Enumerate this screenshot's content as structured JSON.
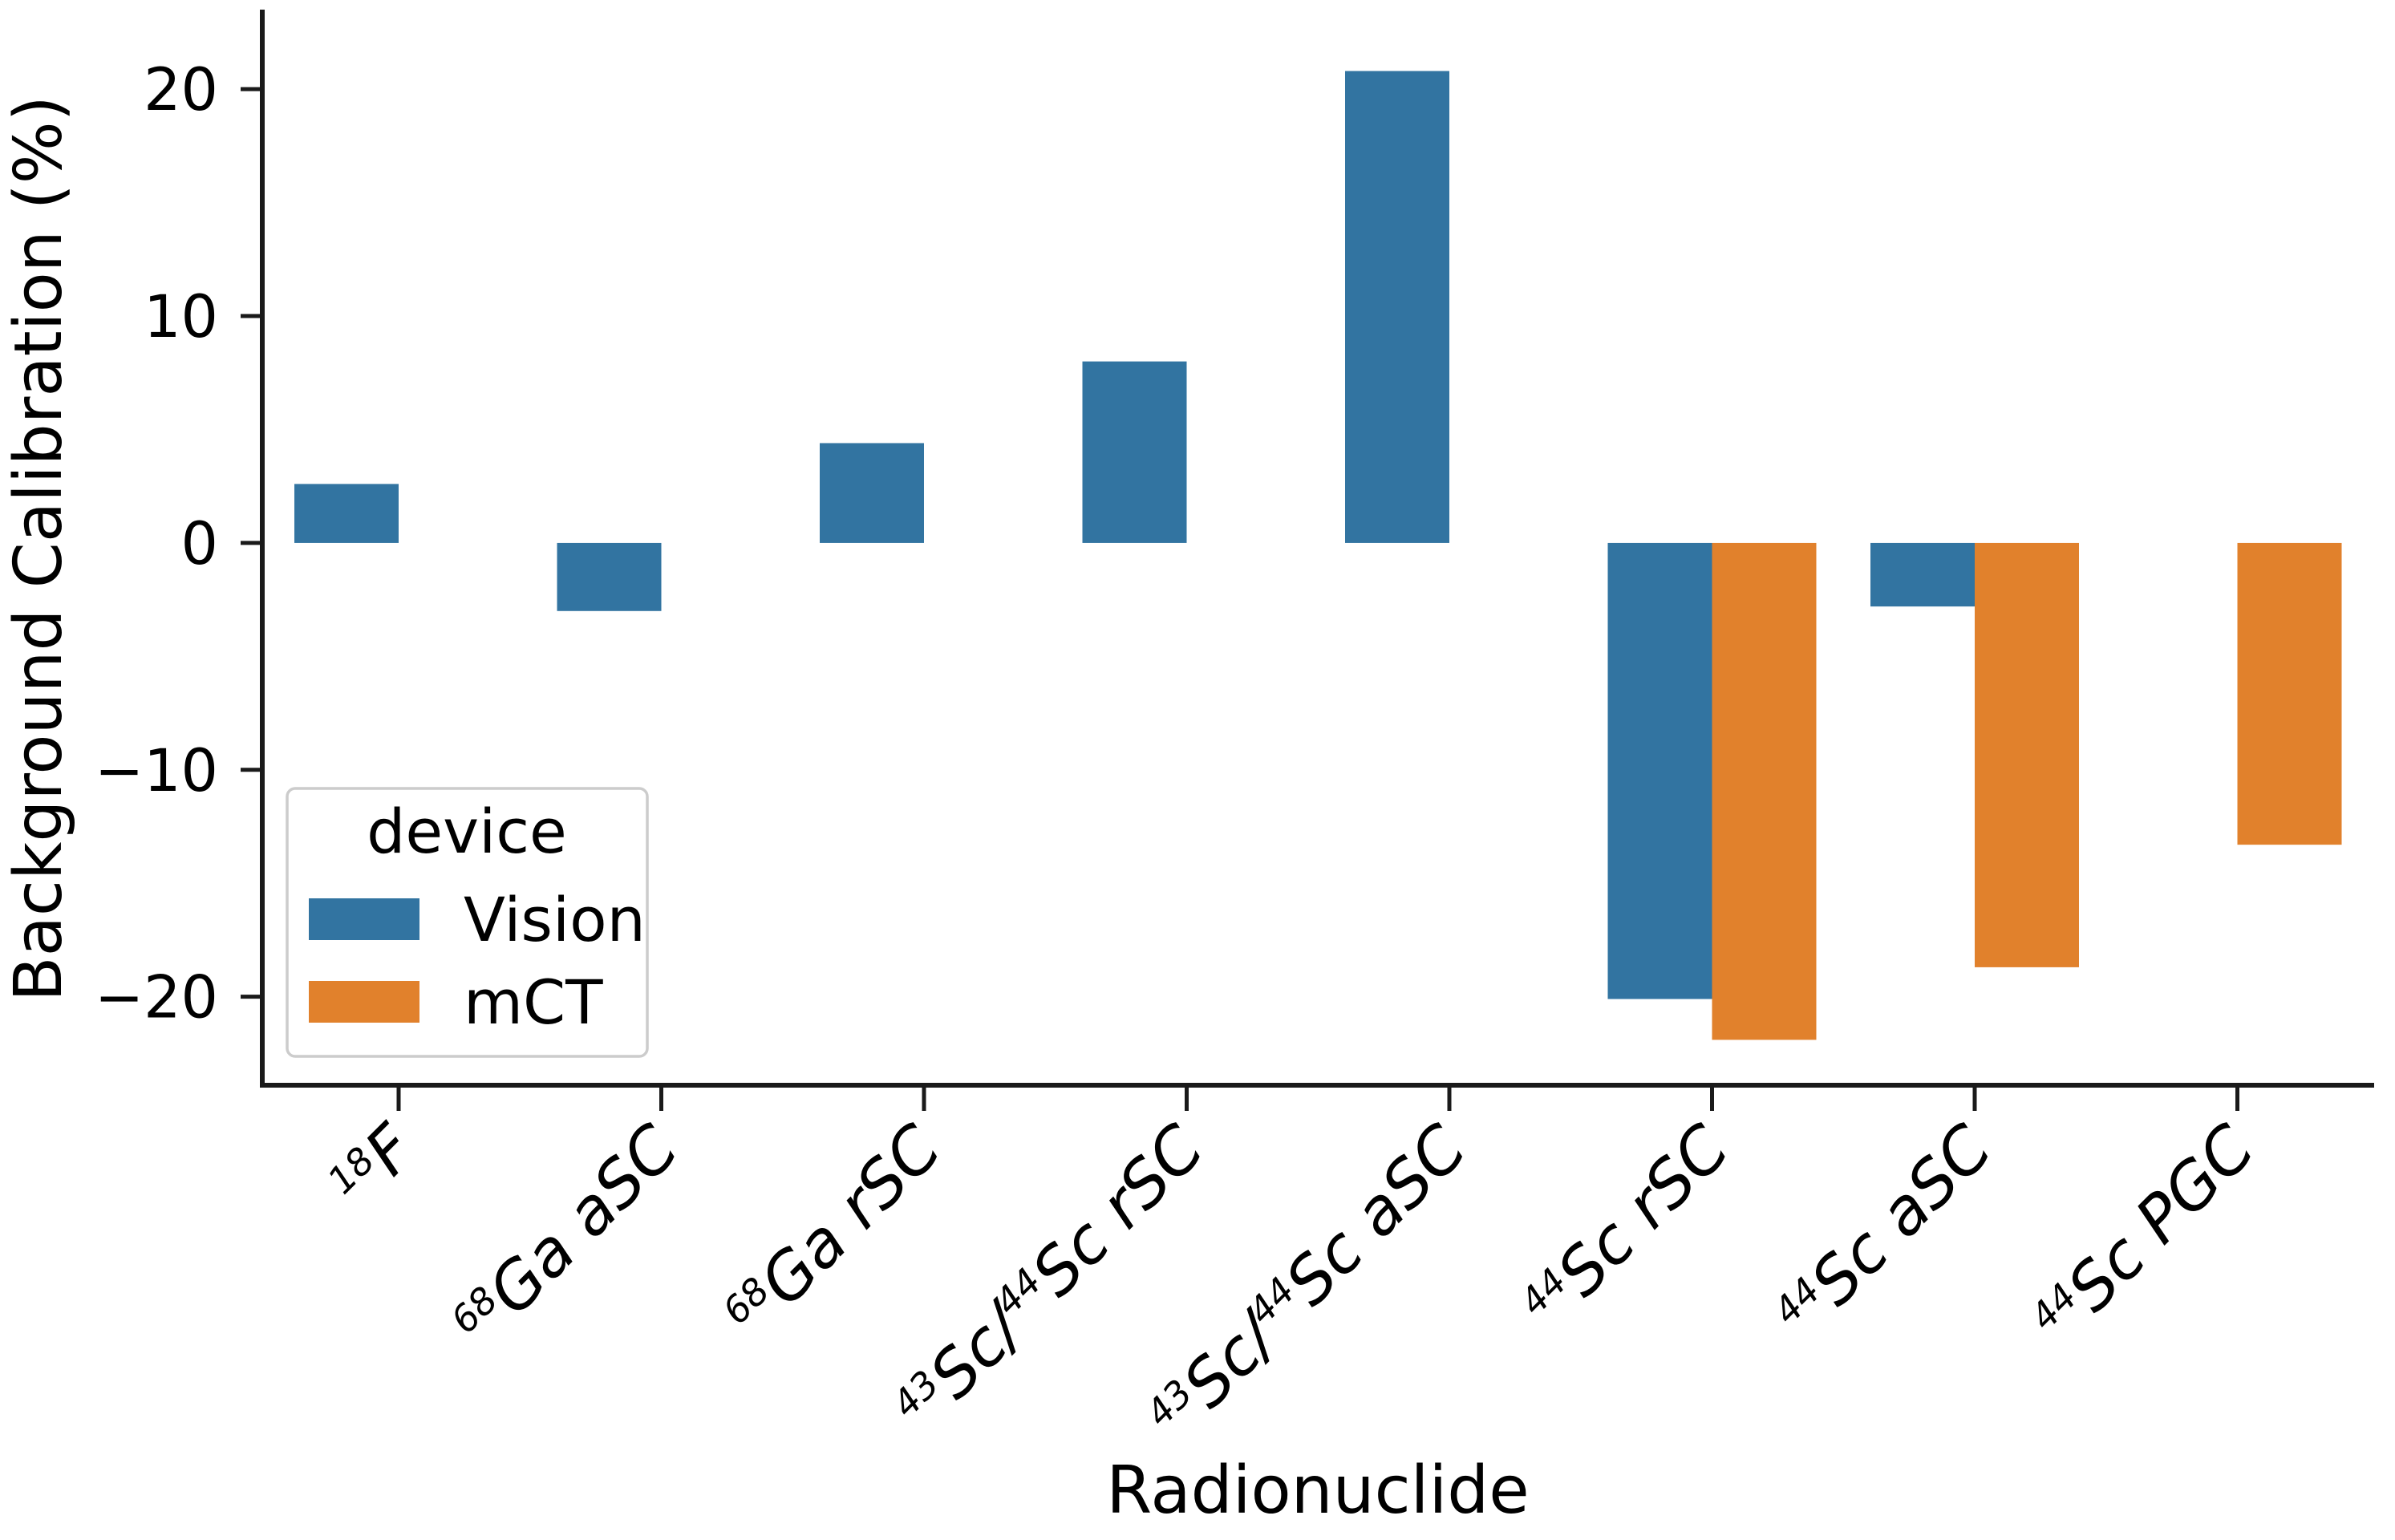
{
  "figure": {
    "background": "#ffffff"
  },
  "chart_data": {
    "type": "bar",
    "title": "",
    "xlabel": "Radionuclide",
    "ylabel": "Background Calibration (%)",
    "ylim": [
      -23.9,
      23.4
    ],
    "yticks": [
      20,
      10,
      0,
      -10,
      -20
    ],
    "grid": false,
    "legend": {
      "title": "device",
      "position": "lower left",
      "entries": [
        "Vision",
        "mCT"
      ]
    },
    "categories": [
      "¹⁸F",
      "⁶⁸Ga aSC",
      "⁶⁸Ga rSC",
      "⁴³Sc/⁴⁴Sc rSC",
      "⁴³Sc/⁴⁴Sc aSC",
      "⁴⁴Sc rSC",
      "⁴⁴Sc aSC",
      "⁴⁴Sc PGC"
    ],
    "categories_rich": [
      [
        {
          "t": "18",
          "sup": true
        },
        {
          "t": "F"
        }
      ],
      [
        {
          "t": "68",
          "sup": true
        },
        {
          "t": "Ga aSC"
        }
      ],
      [
        {
          "t": "68",
          "sup": true
        },
        {
          "t": "Ga rSC"
        }
      ],
      [
        {
          "t": "43",
          "sup": true
        },
        {
          "t": "Sc/"
        },
        {
          "t": "44",
          "sup": true
        },
        {
          "t": "Sc rSC"
        }
      ],
      [
        {
          "t": "43",
          "sup": true
        },
        {
          "t": "Sc/"
        },
        {
          "t": "44",
          "sup": true
        },
        {
          "t": "Sc aSC"
        }
      ],
      [
        {
          "t": "44",
          "sup": true
        },
        {
          "t": "Sc rSC"
        }
      ],
      [
        {
          "t": "44",
          "sup": true
        },
        {
          "t": "Sc aSC"
        }
      ],
      [
        {
          "t": "44",
          "sup": true
        },
        {
          "t": "Sc PGC"
        }
      ]
    ],
    "series": [
      {
        "name": "Vision",
        "color": "#3274a1",
        "values": [
          2.6,
          -3.0,
          4.4,
          8.0,
          20.8,
          -20.1,
          -2.8,
          null
        ]
      },
      {
        "name": "mCT",
        "color": "#e1812c",
        "values": [
          null,
          null,
          null,
          null,
          null,
          -21.9,
          -18.7,
          -13.3
        ]
      }
    ]
  }
}
